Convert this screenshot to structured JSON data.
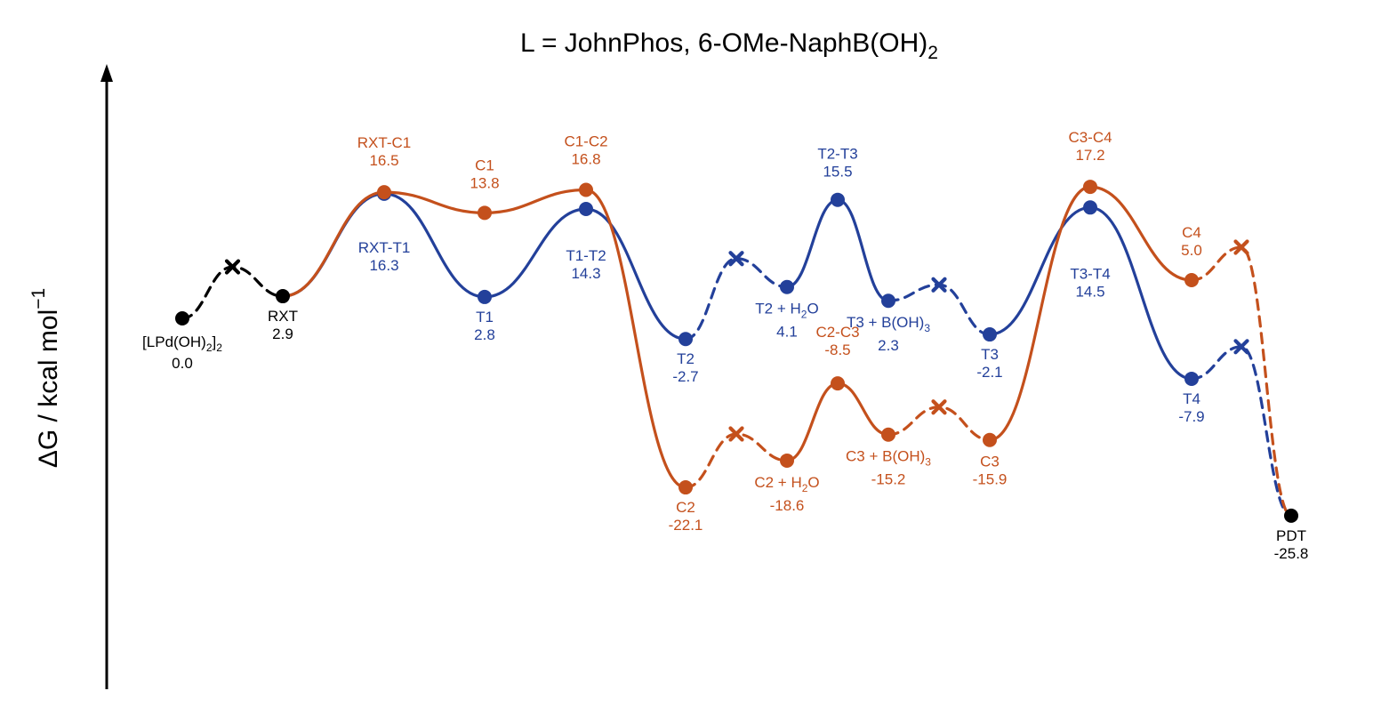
{
  "chart_data": {
    "type": "line",
    "title": "L = JohnPhos, 6-OMe-NaphB(OH)",
    "title_subscript": "2",
    "ylabel": "ΔG / kcal mol",
    "ylabel_superscript": "−1",
    "colors": {
      "common": "#000000",
      "T": "#23409a",
      "C": "#c4501c"
    },
    "common": [
      {
        "id": "LPdOH2",
        "name": "[LPd(OH)",
        "sub": "2",
        "suffix": "]",
        "sub2": "2",
        "value": "0.0"
      },
      {
        "id": "RXT",
        "name": "RXT",
        "value": "2.9"
      },
      {
        "id": "PDT",
        "name": "PDT",
        "value": "-25.8"
      }
    ],
    "T_pathway": [
      {
        "id": "RXT-T1",
        "name": "RXT-T1",
        "value": "16.3"
      },
      {
        "id": "T1",
        "name": "T1",
        "value": "2.8"
      },
      {
        "id": "T1-T2",
        "name": "T1-T2",
        "value": "14.3"
      },
      {
        "id": "T2",
        "name": "T2",
        "value": "-2.7"
      },
      {
        "id": "T2+H2O",
        "name": "T2 + H",
        "sub": "2",
        "suffix": "O",
        "value": "4.1"
      },
      {
        "id": "T2-T3",
        "name": "T2-T3",
        "value": "15.5"
      },
      {
        "id": "T3+BOH3",
        "name": "T3 + B(OH)",
        "sub": "3",
        "value": "2.3"
      },
      {
        "id": "T3",
        "name": "T3",
        "value": "-2.1"
      },
      {
        "id": "T3-T4",
        "name": "T3-T4",
        "value": "14.5"
      },
      {
        "id": "T4",
        "name": "T4",
        "value": "-7.9"
      }
    ],
    "C_pathway": [
      {
        "id": "RXT-C1",
        "name": "RXT-C1",
        "value": "16.5"
      },
      {
        "id": "C1",
        "name": "C1",
        "value": "13.8"
      },
      {
        "id": "C1-C2",
        "name": "C1-C2",
        "value": "16.8"
      },
      {
        "id": "C2",
        "name": "C2",
        "value": "-22.1"
      },
      {
        "id": "C2+H2O",
        "name": "C2 + H",
        "sub": "2",
        "suffix": "O",
        "value": "-18.6"
      },
      {
        "id": "C2-C3",
        "name": "C2-C3",
        "value": "-8.5"
      },
      {
        "id": "C3+BOH3",
        "name": "C3 + B(OH)",
        "sub": "3",
        "value": "-15.2"
      },
      {
        "id": "C3",
        "name": "C3",
        "value": "-15.9"
      },
      {
        "id": "C3-C4",
        "name": "C3-C4",
        "value": "17.2"
      },
      {
        "id": "C4",
        "name": "C4",
        "value": "5.0"
      }
    ]
  }
}
